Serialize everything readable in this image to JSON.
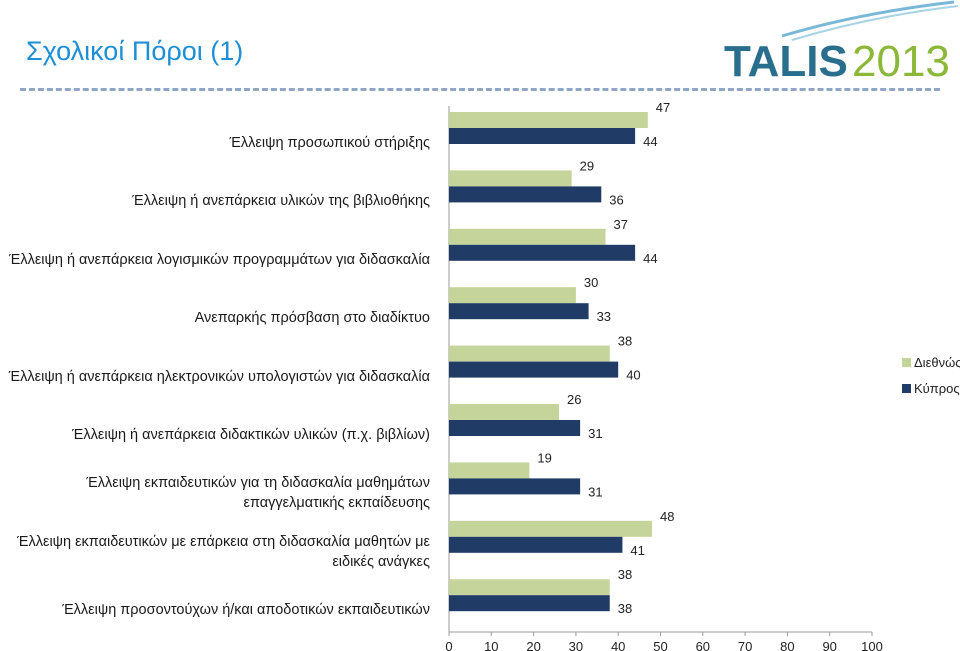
{
  "page": {
    "title": "Σχολικοί Πόροι (1)"
  },
  "logo": {
    "text_main": "TALIS",
    "text_year": "2013"
  },
  "chart_data": {
    "type": "bar",
    "orientation": "horizontal",
    "categories": [
      "Έλλειψη προσωπικού στήριξης",
      "Έλλειψη ή ανεπάρκεια υλικών της βιβλιοθήκης",
      "Έλλειψη ή ανεπάρκεια λογισμικών προγραμμάτων για διδασκαλία",
      "Ανεπαρκής πρόσβαση στο διαδίκτυο",
      "Έλλειψη ή ανεπάρκεια ηλεκτρονικών υπολογιστών για διδασκαλία",
      "Έλλειψη ή ανεπάρκεια διδακτικών υλικών (π.χ. βιβλίων)",
      "Έλλειψη εκπαιδευτικών για τη διδασκαλία μαθημάτων επαγγελματικής εκπαίδευσης",
      "Έλλειψη εκπαιδευτικών με επάρκεια στη διδασκαλία μαθητών με ειδικές ανάγκες",
      "Έλλειψη προσοντούχων ή/και αποδοτικών εκπαιδευτικών"
    ],
    "series": [
      {
        "name": "Διεθνώς",
        "color": "#c5d49a",
        "values": [
          47,
          29,
          37,
          30,
          38,
          26,
          19,
          48,
          38
        ]
      },
      {
        "name": "Κύπρος",
        "color": "#1f3b66",
        "values": [
          44,
          36,
          44,
          33,
          40,
          31,
          31,
          41,
          38
        ]
      }
    ],
    "xlim": [
      0,
      100
    ],
    "xticks": [
      "0",
      "10",
      "20",
      "30",
      "40",
      "50",
      "60",
      "70",
      "80",
      "90",
      "100"
    ],
    "legend_position": "right",
    "grid": false
  }
}
